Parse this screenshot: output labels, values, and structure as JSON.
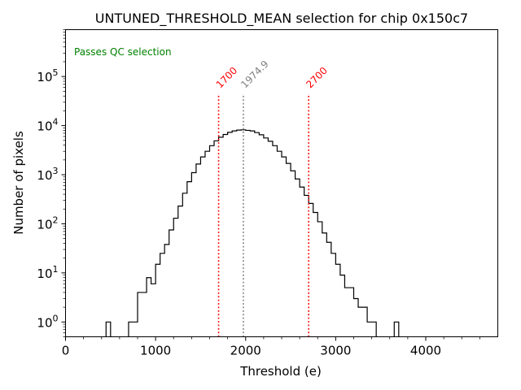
{
  "chart_data": {
    "type": "histogram-step",
    "title": "UNTUNED_THRESHOLD_MEAN selection for chip 0x150c7",
    "xlabel": "Threshold (e)",
    "ylabel": "Number of pixels",
    "xlim": [
      0,
      4800
    ],
    "ylim_log": [
      0.5,
      900000
    ],
    "yscale": "log",
    "bin_width": 50,
    "x_ticks": [
      0,
      1000,
      2000,
      3000,
      4000
    ],
    "x_tick_labels": [
      "0",
      "1000",
      "2000",
      "3000",
      "4000"
    ],
    "y_ticks": [
      1,
      10,
      100,
      1000,
      10000,
      100000
    ],
    "y_tick_labels": [
      "10^0",
      "10^1",
      "10^2",
      "10^3",
      "10^4",
      "10^5"
    ],
    "status_text": "Passes QC selection",
    "status_color": "#008000",
    "vlines": [
      {
        "x": 1700,
        "label": "1700",
        "color": "#ff0000"
      },
      {
        "x": 1974.9,
        "label": "1974.9",
        "color": "#808080"
      },
      {
        "x": 2700,
        "label": "2700",
        "color": "#ff0000"
      }
    ],
    "bins": [
      [
        450,
        500,
        1
      ],
      [
        700,
        800,
        1
      ],
      [
        800,
        850,
        4
      ],
      [
        850,
        900,
        4
      ],
      [
        900,
        950,
        8
      ],
      [
        950,
        1000,
        6
      ],
      [
        1000,
        1050,
        15
      ],
      [
        1050,
        1100,
        25
      ],
      [
        1100,
        1150,
        38
      ],
      [
        1150,
        1200,
        75
      ],
      [
        1200,
        1250,
        130
      ],
      [
        1250,
        1300,
        230
      ],
      [
        1300,
        1350,
        420
      ],
      [
        1350,
        1400,
        720
      ],
      [
        1400,
        1450,
        1100
      ],
      [
        1450,
        1500,
        1650
      ],
      [
        1500,
        1550,
        2300
      ],
      [
        1550,
        1600,
        3000
      ],
      [
        1600,
        1650,
        3900
      ],
      [
        1650,
        1700,
        4900
      ],
      [
        1700,
        1750,
        5800
      ],
      [
        1750,
        1800,
        6600
      ],
      [
        1800,
        1850,
        7300
      ],
      [
        1850,
        1900,
        7800
      ],
      [
        1900,
        1950,
        8100
      ],
      [
        1950,
        2000,
        8200
      ],
      [
        2000,
        2050,
        8000
      ],
      [
        2050,
        2100,
        7800
      ],
      [
        2100,
        2150,
        7200
      ],
      [
        2150,
        2200,
        6500
      ],
      [
        2200,
        2250,
        5600
      ],
      [
        2250,
        2300,
        4800
      ],
      [
        2300,
        2350,
        3900
      ],
      [
        2350,
        2400,
        3000
      ],
      [
        2400,
        2450,
        2300
      ],
      [
        2450,
        2500,
        1700
      ],
      [
        2500,
        2550,
        1200
      ],
      [
        2550,
        2600,
        820
      ],
      [
        2600,
        2650,
        560
      ],
      [
        2650,
        2700,
        380
      ],
      [
        2700,
        2750,
        260
      ],
      [
        2750,
        2800,
        170
      ],
      [
        2800,
        2850,
        110
      ],
      [
        2850,
        2900,
        65
      ],
      [
        2900,
        2950,
        42
      ],
      [
        2950,
        3000,
        25
      ],
      [
        3000,
        3050,
        15
      ],
      [
        3050,
        3100,
        9
      ],
      [
        3100,
        3150,
        5
      ],
      [
        3150,
        3200,
        5
      ],
      [
        3200,
        3250,
        3
      ],
      [
        3250,
        3300,
        2
      ],
      [
        3300,
        3350,
        2
      ],
      [
        3350,
        3400,
        1
      ],
      [
        3400,
        3450,
        1
      ],
      [
        3650,
        3700,
        1
      ]
    ]
  },
  "colors": {
    "histogram": "#000000",
    "axes": "#000000",
    "background": "#ffffff"
  }
}
